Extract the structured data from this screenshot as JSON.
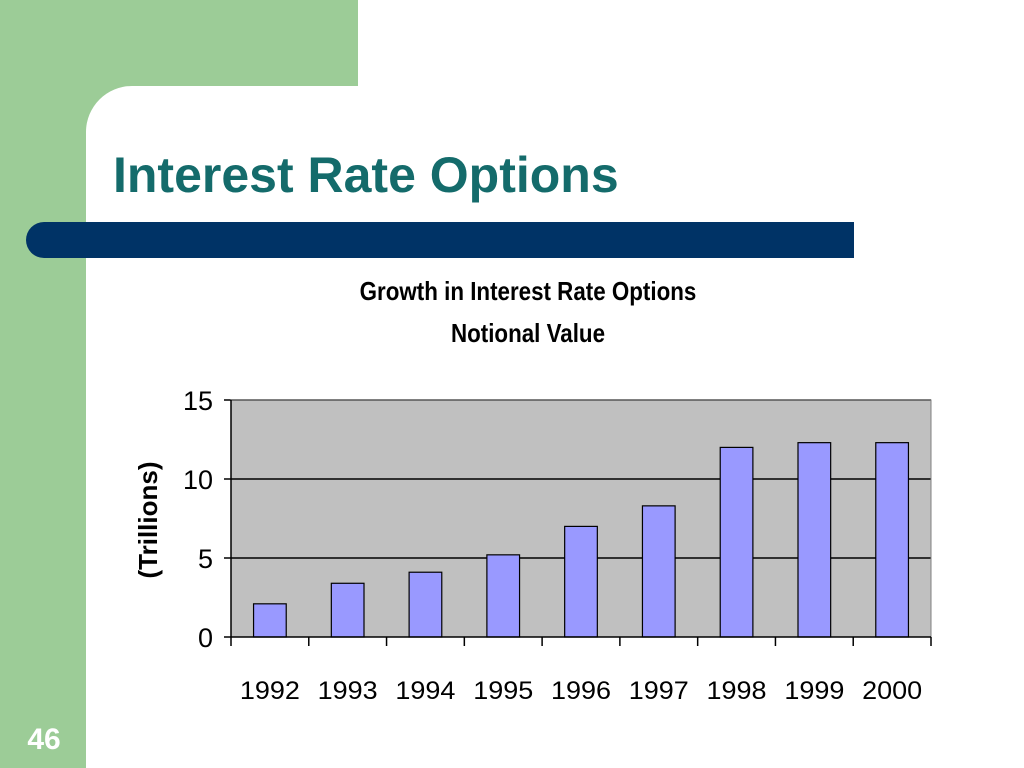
{
  "slide": {
    "title": "Interest Rate Options",
    "page_number": "46"
  },
  "colors": {
    "green_band": "#9ccc97",
    "title_text": "#146b6b",
    "title_bar": "#003366",
    "plot_area": "#c0c0c0",
    "bar_fill": "#9999ff"
  },
  "chart_data": {
    "type": "bar",
    "title": "Growth in Interest Rate Options",
    "subtitle": "Notional Value",
    "xlabel": "",
    "ylabel": "(Trillions)",
    "categories": [
      "1992",
      "1993",
      "1994",
      "1995",
      "1996",
      "1997",
      "1998",
      "1999",
      "2000"
    ],
    "values": [
      2.1,
      3.4,
      4.1,
      5.2,
      7.0,
      8.3,
      12.0,
      12.3,
      12.3
    ],
    "ylim": [
      0,
      15
    ],
    "yticks": [
      "0",
      "5",
      "10",
      "15"
    ],
    "grid": true,
    "legend": "none"
  }
}
